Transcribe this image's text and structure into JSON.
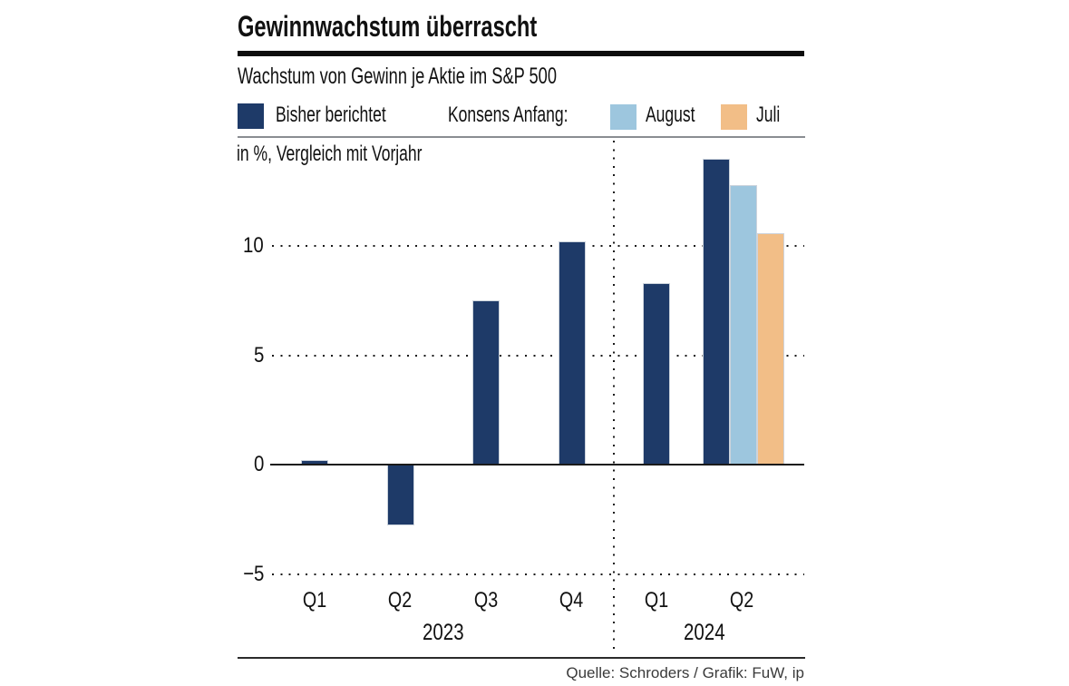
{
  "header": {
    "title": "Gewinnwachstum überrascht",
    "subtitle": "Wachstum von Gewinn je Aktie im S&P 500"
  },
  "legend": {
    "reported": "Bisher berichtet",
    "consensus_prefix": "Konsens Anfang:",
    "august": "August",
    "juli": "Juli"
  },
  "colors": {
    "reported": "#1e3a68",
    "consensus_august": "#9dc6de",
    "consensus_juli": "#f2be87"
  },
  "chart_data": {
    "type": "bar",
    "title": "Gewinnwachstum überrascht",
    "subtitle": "Wachstum von Gewinn je Aktie im S&P 500",
    "unit_note": "in %, Vergleich mit Vorjahr",
    "ylabel": "in %, Vergleich mit Vorjahr",
    "yticks": [
      10,
      5,
      0,
      -5
    ],
    "ylim": [
      -6.6,
      15
    ],
    "grid": {
      "horizontal": "dotted",
      "year_separator": "dotted-vertical-between-2023-and-2024"
    },
    "legend_position": "top",
    "x_groups": [
      {
        "year": "2023",
        "quarters": [
          "Q1",
          "Q2",
          "Q3",
          "Q4"
        ]
      },
      {
        "year": "2024",
        "quarters": [
          "Q1",
          "Q2"
        ]
      }
    ],
    "series": [
      {
        "name": "Bisher berichtet",
        "key": "reported",
        "x": [
          "2023 Q1",
          "2023 Q2",
          "2023 Q3",
          "2023 Q4",
          "2024 Q1",
          "2024 Q2"
        ],
        "values": [
          0.2,
          -2.8,
          7.5,
          10.2,
          8.3,
          14.0
        ]
      },
      {
        "name": "Konsens Anfang August",
        "key": "consensus_august",
        "x": [
          "2024 Q2"
        ],
        "values": [
          12.8
        ]
      },
      {
        "name": "Konsens Anfang Juli",
        "key": "consensus_juli",
        "x": [
          "2024 Q2"
        ],
        "values": [
          10.6
        ]
      }
    ]
  },
  "footer": {
    "source": "Quelle: Schroders / Grafik: FuW, ip"
  }
}
